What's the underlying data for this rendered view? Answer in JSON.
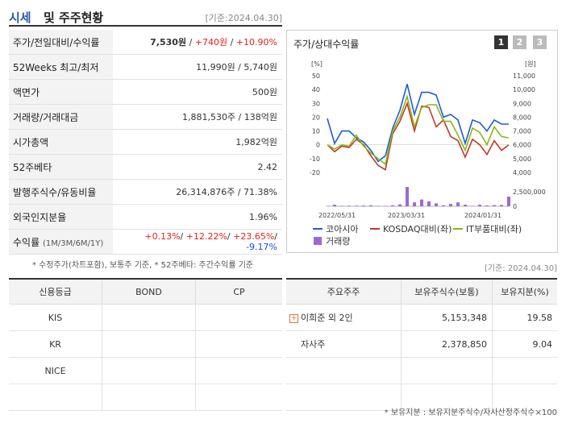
{
  "header": {
    "title_blue": "시세",
    "title_rest": "및 주주현황",
    "date": "[기준:2024.04.30]"
  },
  "quote": {
    "rows": [
      {
        "label": "주가/전일대비/수익률",
        "price": "7,530원",
        "sep1": " / ",
        "change": "+740원",
        "sep2": " / ",
        "rate": "+10.90%"
      },
      {
        "label": "52Weeks 최고/최저",
        "value": "11,990원 / 5,740원"
      },
      {
        "label": "액면가",
        "value": "500원"
      },
      {
        "label": "거래량/거래대금",
        "value": "1,881,530주 / 138억원"
      },
      {
        "label": "시가총액",
        "value": "1,982억원"
      },
      {
        "label": "52주베타",
        "value": "2.42"
      },
      {
        "label": "발행주식수/유동비율",
        "value": "26,314,876주 / 71.38%"
      },
      {
        "label": "외국인지분율",
        "value": "1.96%"
      }
    ],
    "returns": {
      "label": "수익률",
      "sublabel": "(1M/3M/6M/1Y)",
      "r1": "+0.13%",
      "r2": "+12.22%",
      "r3": "+23.65%",
      "r4": "-9.17%",
      "sep": "/ "
    }
  },
  "note_quote": "* 수정주가(차트포함), 보통주 기준, * 52주베타: 주간수익률 기준",
  "chart_title": "주가/상대수익률",
  "pages": [
    "1",
    "2",
    "3"
  ],
  "colors": {
    "kosdaq_line": "#1f5bd6",
    "kosdaq_rel": "#c0392b",
    "it_rel": "#8ab817",
    "volume": "#9b6ad3",
    "page_active": "#333333",
    "page_inactive": "#bbbbbb"
  },
  "chart_data": {
    "type": "line",
    "left_unit": "[%]",
    "right_unit": "[원]",
    "left_ylim": [
      -20,
      50
    ],
    "left_ticks": [
      "50",
      "40",
      "30",
      "20",
      "10",
      "0",
      "-10",
      "-20"
    ],
    "right_ylim": [
      4000,
      11000
    ],
    "right_ticks": [
      "11,000",
      "10,000",
      "9,000",
      "8,000",
      "7,000",
      "6,000",
      "5,000",
      "4,000"
    ],
    "volume_ticks": [
      "2,500,000",
      "0"
    ],
    "x_ticks": [
      "2022/05/31",
      "2023/03/31",
      "2024/01/31"
    ],
    "series": [
      {
        "name": "코아시아",
        "values": [
          19,
          1,
          10,
          10,
          5,
          2,
          -4,
          -12,
          -8,
          12,
          25,
          44,
          22,
          38,
          38,
          36,
          20,
          22,
          18,
          1,
          18,
          16,
          10,
          18,
          15,
          15
        ]
      },
      {
        "name": "KOSDAQ대비(좌)",
        "values": [
          0,
          -5,
          -1,
          -2,
          4,
          0,
          -8,
          -15,
          -18,
          8,
          17,
          30,
          10,
          28,
          27,
          13,
          18,
          6,
          3,
          -9,
          4,
          0,
          -7,
          3,
          -4,
          0
        ]
      },
      {
        "name": "IT부품대비(좌)",
        "values": [
          0,
          -3,
          0,
          -1,
          7,
          -1,
          -6,
          -10,
          -14,
          10,
          20,
          35,
          13,
          27,
          29,
          29,
          17,
          17,
          7,
          -4,
          12,
          9,
          0,
          13,
          6,
          5
        ]
      },
      {
        "name": "거래량",
        "values": [
          0.02,
          0.08,
          0.02,
          0.03,
          0.03,
          0.04,
          0.05,
          0.02,
          0.02,
          0.05,
          0.1,
          1.0,
          0.2,
          0.35,
          0.25,
          0.15,
          0.05,
          0.12,
          0.2,
          0.08,
          0.02,
          0.08,
          0.04,
          0.06,
          0.07,
          0.5
        ]
      }
    ],
    "legend": [
      "코아시아",
      "KOSDAQ대비(좌)",
      "IT부품대비(좌)",
      "거래량"
    ]
  },
  "note_date2": "[기준: 2024.04.30]",
  "credit": {
    "headers": [
      "신용등급",
      "BOND",
      "CP"
    ],
    "rows": [
      [
        "KIS",
        "",
        ""
      ],
      [
        "KR",
        "",
        ""
      ],
      [
        "NICE",
        "",
        ""
      ],
      [
        "",
        "",
        ""
      ]
    ]
  },
  "holders": {
    "headers": [
      "주요주주",
      "보유주식수(보통)",
      "보유지분(%)"
    ],
    "rows": [
      {
        "name": "이희준 외 2인",
        "shares": "5,153,348",
        "pct": "19.58"
      },
      {
        "name": "자사주",
        "shares": "2,378,850",
        "pct": "9.04"
      },
      {
        "name": "",
        "shares": "",
        "pct": ""
      },
      {
        "name": "",
        "shares": "",
        "pct": ""
      }
    ]
  },
  "note_holders": "* 보유지분 : 보유지분주식수/자사산정주식수×100"
}
